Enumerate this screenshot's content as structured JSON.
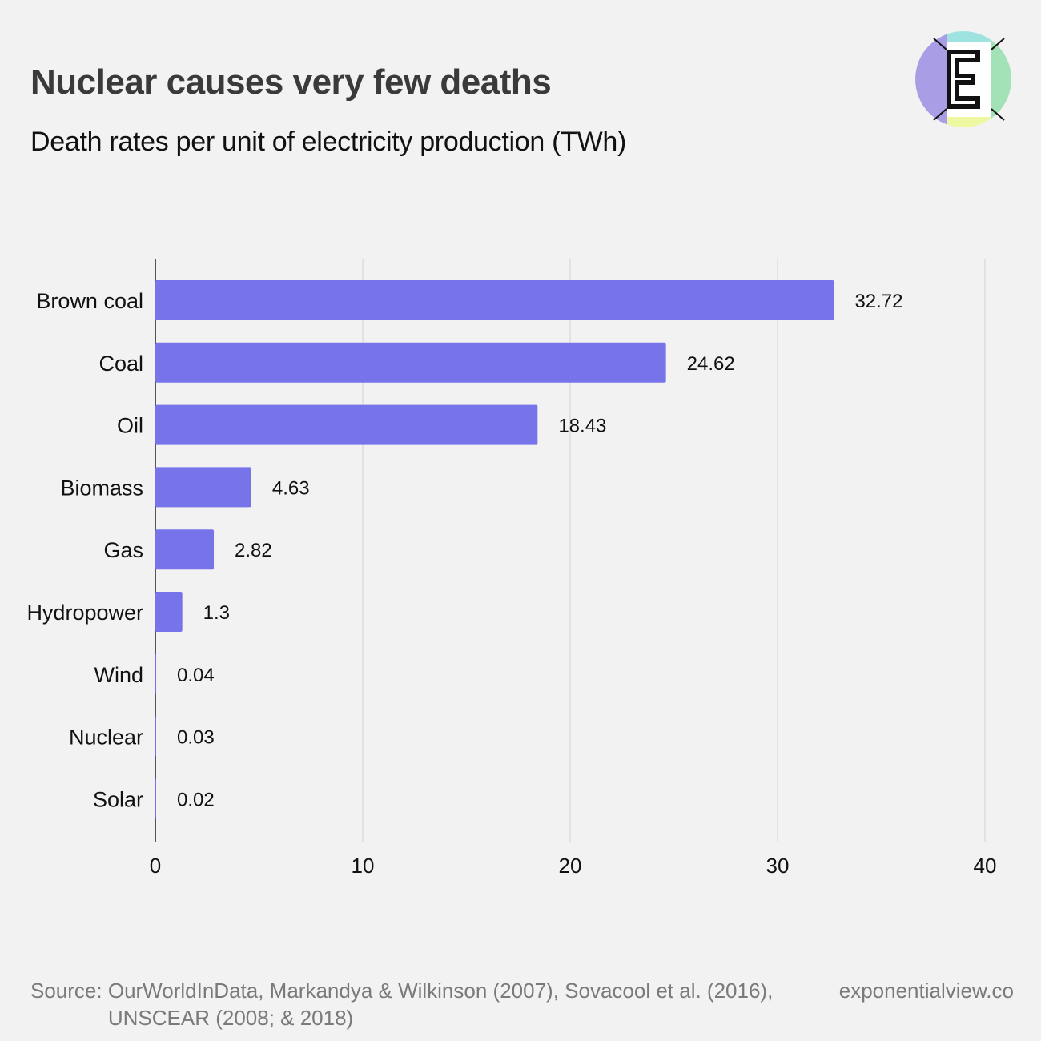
{
  "header": {
    "title": "Nuclear causes very few deaths",
    "subtitle": "Death rates per unit of electricity production (TWh)"
  },
  "logo": {
    "icon": "exponential-view-logo-icon",
    "letter": "E"
  },
  "footer": {
    "source_label": "Source:",
    "source_text": "OurWorldInData, Markandya & Wilkinson (2007), Sovacool et al. (2016), UNSCEAR (2008; & 2018)",
    "site": "exponentialview.co"
  },
  "colors": {
    "bar": "#7774ea",
    "background": "#f2f2f2",
    "grid": "#dcdcdc",
    "axis": "#222222"
  },
  "chart_data": {
    "type": "bar",
    "orientation": "horizontal",
    "categories": [
      "Brown coal",
      "Coal",
      "Oil",
      "Biomass",
      "Gas",
      "Hydropower",
      "Wind",
      "Nuclear",
      "Solar"
    ],
    "values": [
      32.72,
      24.62,
      18.43,
      4.63,
      2.82,
      1.3,
      0.04,
      0.03,
      0.02
    ],
    "value_labels": [
      "32.72",
      "24.62",
      "18.43",
      "4.63",
      "2.82",
      "1.3",
      "0.04",
      "0.03",
      "0.02"
    ],
    "xlim": [
      0,
      40
    ],
    "xticks": [
      0,
      10,
      20,
      30,
      40
    ],
    "grid": true,
    "legend": "none"
  }
}
